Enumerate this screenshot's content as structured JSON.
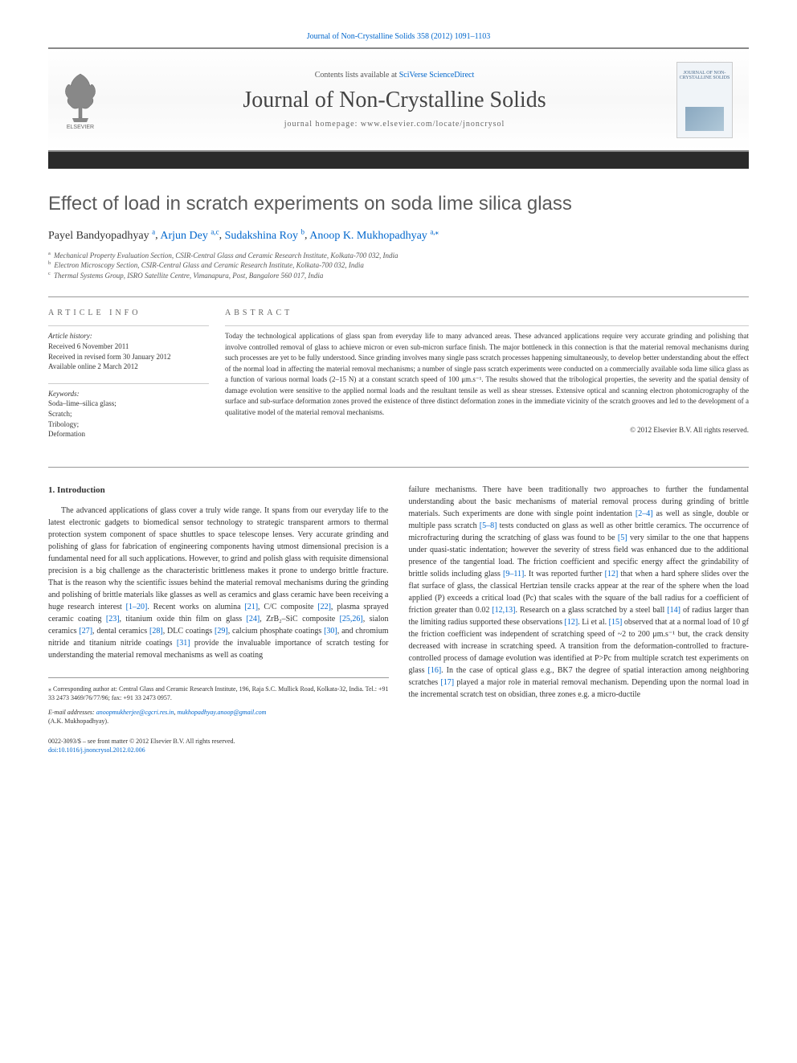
{
  "journal_ref": "Journal of Non-Crystalline Solids 358 (2012) 1091–1103",
  "header": {
    "contents_prefix": "Contents lists available at ",
    "contents_link": "SciVerse ScienceDirect",
    "journal_title": "Journal of Non-Crystalline Solids",
    "homepage": "journal homepage: www.elsevier.com/locate/jnoncrysol",
    "publisher": "ELSEVIER",
    "cover_title": "JOURNAL OF NON-CRYSTALLINE SOLIDS"
  },
  "title": "Effect of load in scratch experiments on soda lime silica glass",
  "authors_plain": "Payel Bandyopadhyay",
  "authors": [
    {
      "name": "Payel Bandyopadhyay",
      "aff": "a"
    },
    {
      "name": "Arjun Dey",
      "aff": "a,c"
    },
    {
      "name": "Sudakshina Roy",
      "aff": "b"
    },
    {
      "name": "Anoop K. Mukhopadhyay",
      "aff": "a,",
      "corr": true
    }
  ],
  "affiliations": [
    {
      "sup": "a",
      "text": "Mechanical Property Evaluation Section, CSIR-Central Glass and Ceramic Research Institute, Kolkata-700 032, India"
    },
    {
      "sup": "b",
      "text": "Electron Microscopy Section, CSIR-Central Glass and Ceramic Research Institute, Kolkata-700 032, India"
    },
    {
      "sup": "c",
      "text": "Thermal Systems Group, ISRO Satellite Centre, Vimanapura, Post, Bangalore 560 017, India"
    }
  ],
  "article_info": {
    "heading": "article info",
    "history_label": "Article history:",
    "received": "Received 6 November 2011",
    "revised": "Received in revised form 30 January 2012",
    "online": "Available online 2 March 2012",
    "keywords_label": "Keywords:",
    "keywords": [
      "Soda–lime–silica glass;",
      "Scratch;",
      "Tribology;",
      "Deformation"
    ]
  },
  "abstract": {
    "heading": "abstract",
    "text": "Today the technological applications of glass span from everyday life to many advanced areas. These advanced applications require very accurate grinding and polishing that involve controlled removal of glass to achieve micron or even sub-micron surface finish. The major bottleneck in this connection is that the material removal mechanisms during such processes are yet to be fully understood. Since grinding involves many single pass scratch processes happening simultaneously, to develop better understanding about the effect of the normal load in affecting the material removal mechanisms; a number of single pass scratch experiments were conducted on a commercially available soda lime silica glass as a function of various normal loads (2–15 N) at a constant scratch speed of 100 μm.s⁻¹. The results showed that the tribological properties, the severity and the spatial density of damage evolution were sensitive to the applied normal loads and the resultant tensile as well as shear stresses. Extensive optical and scanning electron photomicrography of the surface and sub-surface deformation zones proved the existence of three distinct deformation zones in the immediate vicinity of the scratch grooves and led to the development of a qualitative model of the material removal mechanisms.",
    "copyright": "© 2012 Elsevier B.V. All rights reserved."
  },
  "intro": {
    "heading": "1. Introduction",
    "col1_parts": [
      {
        "t": "text",
        "v": "The advanced applications of glass cover a truly wide range. It spans from our everyday life to the latest electronic gadgets to biomedical sensor technology to strategic transparent armors to thermal protection system component of space shuttles to space telescope lenses. Very accurate grinding and polishing of glass for fabrication of engineering components having utmost dimensional precision is a fundamental need for all such applications. However, to grind and polish glass with requisite dimensional precision is a big challenge as the characteristic brittleness makes it prone to undergo brittle fracture. That is the reason why the scientific issues behind the material removal mechanisms during the grinding and polishing of brittle materials like glasses as well as ceramics and glass ceramic have been receiving a huge research interest "
      },
      {
        "t": "ref",
        "v": "[1–20]"
      },
      {
        "t": "text",
        "v": ". Recent works on alumina "
      },
      {
        "t": "ref",
        "v": "[21]"
      },
      {
        "t": "text",
        "v": ", C/C composite "
      },
      {
        "t": "ref",
        "v": "[22]"
      },
      {
        "t": "text",
        "v": ", plasma sprayed ceramic coating "
      },
      {
        "t": "ref",
        "v": "[23]"
      },
      {
        "t": "text",
        "v": ", titanium oxide thin film on glass "
      },
      {
        "t": "ref",
        "v": "[24]"
      },
      {
        "t": "text",
        "v": ", ZrB₂–SiC composite "
      },
      {
        "t": "ref",
        "v": "[25,26]"
      },
      {
        "t": "text",
        "v": ", sialon ceramics "
      },
      {
        "t": "ref",
        "v": "[27]"
      },
      {
        "t": "text",
        "v": ", dental ceramics "
      },
      {
        "t": "ref",
        "v": "[28]"
      },
      {
        "t": "text",
        "v": ", DLC coatings "
      },
      {
        "t": "ref",
        "v": "[29]"
      },
      {
        "t": "text",
        "v": ", calcium phosphate coatings "
      },
      {
        "t": "ref",
        "v": "[30]"
      },
      {
        "t": "text",
        "v": ", and chromium nitride and titanium nitride coatings "
      },
      {
        "t": "ref",
        "v": "[31]"
      },
      {
        "t": "text",
        "v": " provide the invaluable importance of scratch testing for understanding the material removal mechanisms as well as coating"
      }
    ],
    "col2_parts": [
      {
        "t": "text",
        "v": "failure mechanisms. There have been traditionally two approaches to further the fundamental understanding about the basic mechanisms of material removal process during grinding of brittle materials. Such experiments are done with single point indentation "
      },
      {
        "t": "ref",
        "v": "[2–4]"
      },
      {
        "t": "text",
        "v": " as well as single, double or multiple pass scratch "
      },
      {
        "t": "ref",
        "v": "[5–8]"
      },
      {
        "t": "text",
        "v": " tests conducted on glass as well as other brittle ceramics. The occurrence of microfracturing during the scratching of glass was found to be "
      },
      {
        "t": "ref",
        "v": "[5]"
      },
      {
        "t": "text",
        "v": " very similar to the one that happens under quasi-static indentation; however the severity of stress field was enhanced due to the additional presence of the tangential load. The friction coefficient and specific energy affect the grindability of brittle solids including glass "
      },
      {
        "t": "ref",
        "v": "[9–11]"
      },
      {
        "t": "text",
        "v": ". It was reported further "
      },
      {
        "t": "ref",
        "v": "[12]"
      },
      {
        "t": "text",
        "v": " that when a hard sphere slides over the flat surface of glass, the classical Hertzian tensile cracks appear at the rear of the sphere when the load applied (P) exceeds a critical load (Pc) that scales with the square of the ball radius for a coefficient of friction greater than 0.02 "
      },
      {
        "t": "ref",
        "v": "[12,13]"
      },
      {
        "t": "text",
        "v": ". Research on a glass scratched by a steel ball "
      },
      {
        "t": "ref",
        "v": "[14]"
      },
      {
        "t": "text",
        "v": " of radius larger than the limiting radius supported these observations "
      },
      {
        "t": "ref",
        "v": "[12]"
      },
      {
        "t": "text",
        "v": ". Li et al. "
      },
      {
        "t": "ref",
        "v": "[15]"
      },
      {
        "t": "text",
        "v": " observed that at a normal load of 10 gf the friction coefficient was independent of scratching speed of ~2 to 200 μm.s⁻¹ but, the crack density decreased with increase in scratching speed. A transition from the deformation-controlled to fracture-controlled process of damage evolution was identified at P>Pc from multiple scratch test experiments on glass "
      },
      {
        "t": "ref",
        "v": "[16]"
      },
      {
        "t": "text",
        "v": ". In the case of optical glass e.g., BK7 the degree of spatial interaction among neighboring scratches "
      },
      {
        "t": "ref",
        "v": "[17]"
      },
      {
        "t": "text",
        "v": " played a major role in material removal mechanism. Depending upon the normal load in the incremental scratch test on obsidian, three zones e.g. a micro-ductile"
      }
    ]
  },
  "footer": {
    "corr_symbol": "⁎",
    "corr_text": "Corresponding author at: Central Glass and Ceramic Research Institute, 196, Raja S.C. Mullick Road, Kolkata-32, India. Tel.: +91 33 2473 3469/76/77/96; fax: +91 33 2473 0957.",
    "email_label": "E-mail addresses:",
    "emails": [
      "anoopmukherjee@cgcri.res.in",
      "mukhopadhyay.anoop@gmail.com"
    ],
    "email_person": "(A.K. Mukhopadhyay).",
    "issn_line": "0022-3093/$ – see front matter © 2012 Elsevier B.V. All rights reserved.",
    "doi": "doi:10.1016/j.jnoncrysol.2012.02.006"
  },
  "colors": {
    "link": "#0066cc",
    "text": "#333333",
    "heading_gray": "#5a5a5a",
    "border": "#999999"
  }
}
